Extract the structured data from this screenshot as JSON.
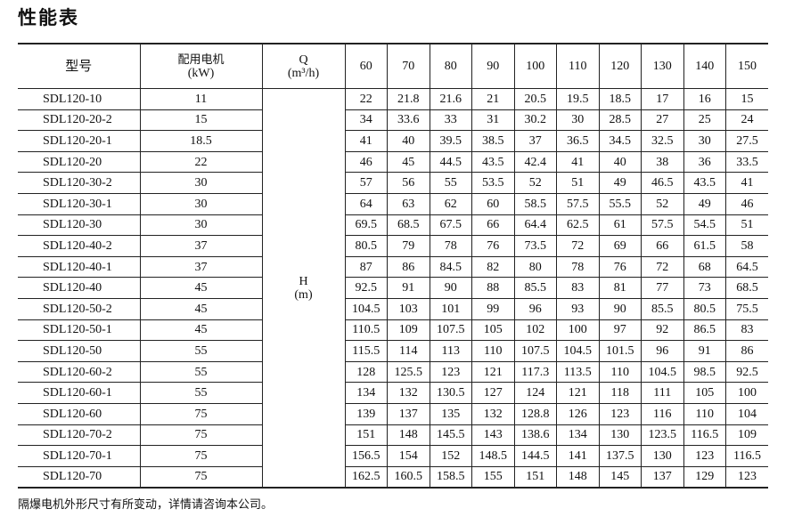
{
  "title": "性能表",
  "table": {
    "headers": {
      "model": "型号",
      "motor_line1": "配用电机",
      "motor_line2": "(kW)",
      "q_line1": "Q",
      "q_line2": "(m³/h)",
      "h_line1": "H",
      "h_line2": "(m)",
      "flows": [
        "60",
        "70",
        "80",
        "90",
        "100",
        "110",
        "120",
        "130",
        "140",
        "150"
      ]
    },
    "rows": [
      {
        "model": "SDL120-10",
        "kw": "11",
        "h": [
          "22",
          "21.8",
          "21.6",
          "21",
          "20.5",
          "19.5",
          "18.5",
          "17",
          "16",
          "15"
        ]
      },
      {
        "model": "SDL120-20-2",
        "kw": "15",
        "h": [
          "34",
          "33.6",
          "33",
          "31",
          "30.2",
          "30",
          "28.5",
          "27",
          "25",
          "24"
        ]
      },
      {
        "model": "SDL120-20-1",
        "kw": "18.5",
        "h": [
          "41",
          "40",
          "39.5",
          "38.5",
          "37",
          "36.5",
          "34.5",
          "32.5",
          "30",
          "27.5"
        ]
      },
      {
        "model": "SDL120-20",
        "kw": "22",
        "h": [
          "46",
          "45",
          "44.5",
          "43.5",
          "42.4",
          "41",
          "40",
          "38",
          "36",
          "33.5"
        ]
      },
      {
        "model": "SDL120-30-2",
        "kw": "30",
        "h": [
          "57",
          "56",
          "55",
          "53.5",
          "52",
          "51",
          "49",
          "46.5",
          "43.5",
          "41"
        ]
      },
      {
        "model": "SDL120-30-1",
        "kw": "30",
        "h": [
          "64",
          "63",
          "62",
          "60",
          "58.5",
          "57.5",
          "55.5",
          "52",
          "49",
          "46"
        ]
      },
      {
        "model": "SDL120-30",
        "kw": "30",
        "h": [
          "69.5",
          "68.5",
          "67.5",
          "66",
          "64.4",
          "62.5",
          "61",
          "57.5",
          "54.5",
          "51"
        ]
      },
      {
        "model": "SDL120-40-2",
        "kw": "37",
        "h": [
          "80.5",
          "79",
          "78",
          "76",
          "73.5",
          "72",
          "69",
          "66",
          "61.5",
          "58"
        ]
      },
      {
        "model": "SDL120-40-1",
        "kw": "37",
        "h": [
          "87",
          "86",
          "84.5",
          "82",
          "80",
          "78",
          "76",
          "72",
          "68",
          "64.5"
        ]
      },
      {
        "model": "SDL120-40",
        "kw": "45",
        "h": [
          "92.5",
          "91",
          "90",
          "88",
          "85.5",
          "83",
          "81",
          "77",
          "73",
          "68.5"
        ]
      },
      {
        "model": "SDL120-50-2",
        "kw": "45",
        "h": [
          "104.5",
          "103",
          "101",
          "99",
          "96",
          "93",
          "90",
          "85.5",
          "80.5",
          "75.5"
        ]
      },
      {
        "model": "SDL120-50-1",
        "kw": "45",
        "h": [
          "110.5",
          "109",
          "107.5",
          "105",
          "102",
          "100",
          "97",
          "92",
          "86.5",
          "83"
        ]
      },
      {
        "model": "SDL120-50",
        "kw": "55",
        "h": [
          "115.5",
          "114",
          "113",
          "110",
          "107.5",
          "104.5",
          "101.5",
          "96",
          "91",
          "86"
        ]
      },
      {
        "model": "SDL120-60-2",
        "kw": "55",
        "h": [
          "128",
          "125.5",
          "123",
          "121",
          "117.3",
          "113.5",
          "110",
          "104.5",
          "98.5",
          "92.5"
        ]
      },
      {
        "model": "SDL120-60-1",
        "kw": "55",
        "h": [
          "134",
          "132",
          "130.5",
          "127",
          "124",
          "121",
          "118",
          "111",
          "105",
          "100"
        ]
      },
      {
        "model": "SDL120-60",
        "kw": "75",
        "h": [
          "139",
          "137",
          "135",
          "132",
          "128.8",
          "126",
          "123",
          "116",
          "110",
          "104"
        ]
      },
      {
        "model": "SDL120-70-2",
        "kw": "75",
        "h": [
          "151",
          "148",
          "145.5",
          "143",
          "138.6",
          "134",
          "130",
          "123.5",
          "116.5",
          "109"
        ]
      },
      {
        "model": "SDL120-70-1",
        "kw": "75",
        "h": [
          "156.5",
          "154",
          "152",
          "148.5",
          "144.5",
          "141",
          "137.5",
          "130",
          "123",
          "116.5"
        ]
      },
      {
        "model": "SDL120-70",
        "kw": "75",
        "h": [
          "162.5",
          "160.5",
          "158.5",
          "155",
          "151",
          "148",
          "145",
          "137",
          "129",
          "123"
        ]
      }
    ]
  },
  "note": "隔爆电机外形尺寸有所变动，详情请咨询本公司。"
}
